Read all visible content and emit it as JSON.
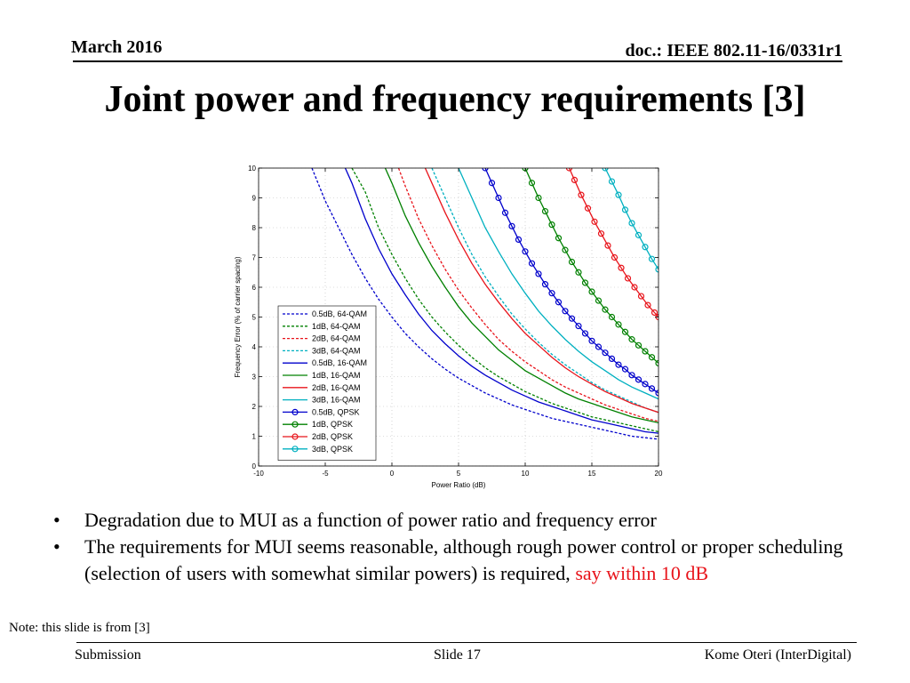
{
  "header": {
    "date": "March 2016",
    "doc": "doc.: IEEE 802.11-16/0331r1"
  },
  "slide_title": "Joint power and frequency requirements [3]",
  "bullets": [
    {
      "text": "Degradation due to MUI as a function of power ratio and frequency error",
      "highlight": ""
    },
    {
      "text": "The requirements for MUI seems reasonable, although rough power control or proper scheduling (selection of users with somewhat similar powers) is required, ",
      "highlight": "say within 10 dB"
    }
  ],
  "bullet_symbol": "•",
  "highlight_color": "#e8141b",
  "note": "Note: this slide is from [3]",
  "footer": {
    "left": "Submission",
    "center": "Slide 17",
    "right": "Kome Oteri (InterDigital)"
  },
  "chart_data": {
    "type": "line",
    "title": "",
    "xlabel": "Power Ratio (dB)",
    "ylabel": "Frequency Error (% of carrier spacing)",
    "xlim": [
      -10,
      20
    ],
    "ylim": [
      0,
      10
    ],
    "xticks": [
      -10,
      -5,
      0,
      5,
      10,
      15,
      20
    ],
    "yticks": [
      0,
      1,
      2,
      3,
      4,
      5,
      6,
      7,
      8,
      9,
      10
    ],
    "grid": true,
    "legend_position": "left-center",
    "series": [
      {
        "name": "0.5dB, 64-QAM",
        "color": "#0000cc",
        "style": "dashed",
        "marker": "none",
        "points": [
          [
            -6,
            10
          ],
          [
            -5,
            8.9
          ],
          [
            -4,
            8.0
          ],
          [
            -3,
            7.1
          ],
          [
            -2,
            6.3
          ],
          [
            -1,
            5.6
          ],
          [
            0,
            5.0
          ],
          [
            1,
            4.45
          ],
          [
            2,
            4.0
          ],
          [
            3,
            3.6
          ],
          [
            4,
            3.25
          ],
          [
            5,
            2.95
          ],
          [
            6,
            2.7
          ],
          [
            7,
            2.45
          ],
          [
            8,
            2.25
          ],
          [
            9,
            2.05
          ],
          [
            10,
            1.9
          ],
          [
            11,
            1.75
          ],
          [
            12,
            1.6
          ],
          [
            13,
            1.5
          ],
          [
            14,
            1.4
          ],
          [
            15,
            1.3
          ],
          [
            16,
            1.2
          ],
          [
            17,
            1.1
          ],
          [
            18,
            1.0
          ],
          [
            19,
            0.95
          ],
          [
            20,
            0.9
          ]
        ]
      },
      {
        "name": "1dB, 64-QAM",
        "color": "#008000",
        "style": "dashed",
        "marker": "none",
        "points": [
          [
            -3,
            10
          ],
          [
            -2,
            9.2
          ],
          [
            -1,
            8.0
          ],
          [
            0,
            7.1
          ],
          [
            1,
            6.3
          ],
          [
            2,
            5.6
          ],
          [
            3,
            5.0
          ],
          [
            4,
            4.5
          ],
          [
            5,
            4.05
          ],
          [
            6,
            3.65
          ],
          [
            7,
            3.3
          ],
          [
            8,
            3.0
          ],
          [
            9,
            2.75
          ],
          [
            10,
            2.5
          ],
          [
            11,
            2.3
          ],
          [
            12,
            2.1
          ],
          [
            13,
            1.95
          ],
          [
            14,
            1.8
          ],
          [
            15,
            1.65
          ],
          [
            16,
            1.55
          ],
          [
            17,
            1.45
          ],
          [
            18,
            1.35
          ],
          [
            19,
            1.25
          ],
          [
            20,
            1.15
          ]
        ]
      },
      {
        "name": "2dB, 64-QAM",
        "color": "#e8141b",
        "style": "dashed",
        "marker": "none",
        "points": [
          [
            0.5,
            10
          ],
          [
            1,
            9.4
          ],
          [
            2,
            8.3
          ],
          [
            3,
            7.4
          ],
          [
            4,
            6.6
          ],
          [
            5,
            5.9
          ],
          [
            6,
            5.3
          ],
          [
            7,
            4.75
          ],
          [
            8,
            4.25
          ],
          [
            9,
            3.85
          ],
          [
            10,
            3.5
          ],
          [
            11,
            3.2
          ],
          [
            12,
            2.9
          ],
          [
            13,
            2.65
          ],
          [
            14,
            2.45
          ],
          [
            15,
            2.25
          ],
          [
            16,
            2.05
          ],
          [
            17,
            1.9
          ],
          [
            18,
            1.75
          ],
          [
            19,
            1.6
          ],
          [
            20,
            1.5
          ]
        ]
      },
      {
        "name": "3dB, 64-QAM",
        "color": "#00b0c0",
        "style": "dashed",
        "marker": "none",
        "points": [
          [
            3,
            10
          ],
          [
            4,
            9.0
          ],
          [
            5,
            8.0
          ],
          [
            6,
            7.1
          ],
          [
            7,
            6.35
          ],
          [
            8,
            5.7
          ],
          [
            9,
            5.1
          ],
          [
            10,
            4.6
          ],
          [
            11,
            4.15
          ],
          [
            12,
            3.75
          ],
          [
            13,
            3.4
          ],
          [
            14,
            3.1
          ],
          [
            15,
            2.8
          ],
          [
            16,
            2.55
          ],
          [
            17,
            2.35
          ],
          [
            18,
            2.15
          ],
          [
            19,
            1.95
          ],
          [
            20,
            1.8
          ]
        ]
      },
      {
        "name": "0.5dB, 16-QAM",
        "color": "#0000cc",
        "style": "solid",
        "marker": "none",
        "points": [
          [
            -3.5,
            10
          ],
          [
            -3,
            9.5
          ],
          [
            -2,
            8.3
          ],
          [
            -1,
            7.3
          ],
          [
            0,
            6.45
          ],
          [
            1,
            5.75
          ],
          [
            2,
            5.1
          ],
          [
            3,
            4.55
          ],
          [
            4,
            4.1
          ],
          [
            5,
            3.7
          ],
          [
            6,
            3.35
          ],
          [
            7,
            3.05
          ],
          [
            8,
            2.8
          ],
          [
            9,
            2.55
          ],
          [
            10,
            2.35
          ],
          [
            11,
            2.15
          ],
          [
            12,
            2.0
          ],
          [
            13,
            1.85
          ],
          [
            14,
            1.7
          ],
          [
            15,
            1.55
          ],
          [
            16,
            1.45
          ],
          [
            17,
            1.35
          ],
          [
            18,
            1.25
          ],
          [
            19,
            1.15
          ],
          [
            20,
            1.1
          ]
        ]
      },
      {
        "name": "1dB, 16-QAM",
        "color": "#008000",
        "style": "solid",
        "marker": "none",
        "points": [
          [
            -0.5,
            10
          ],
          [
            0,
            9.5
          ],
          [
            1,
            8.4
          ],
          [
            2,
            7.5
          ],
          [
            3,
            6.7
          ],
          [
            4,
            6.0
          ],
          [
            5,
            5.35
          ],
          [
            6,
            4.8
          ],
          [
            7,
            4.35
          ],
          [
            8,
            3.9
          ],
          [
            9,
            3.55
          ],
          [
            10,
            3.2
          ],
          [
            11,
            2.95
          ],
          [
            12,
            2.7
          ],
          [
            13,
            2.45
          ],
          [
            14,
            2.25
          ],
          [
            15,
            2.1
          ],
          [
            16,
            1.95
          ],
          [
            17,
            1.8
          ],
          [
            18,
            1.65
          ],
          [
            19,
            1.55
          ],
          [
            20,
            1.45
          ]
        ]
      },
      {
        "name": "2dB, 16-QAM",
        "color": "#e8141b",
        "style": "solid",
        "marker": "none",
        "points": [
          [
            2.5,
            10
          ],
          [
            3,
            9.5
          ],
          [
            4,
            8.5
          ],
          [
            5,
            7.6
          ],
          [
            6,
            6.8
          ],
          [
            7,
            6.1
          ],
          [
            8,
            5.5
          ],
          [
            9,
            4.95
          ],
          [
            10,
            4.45
          ],
          [
            11,
            4.05
          ],
          [
            12,
            3.65
          ],
          [
            13,
            3.3
          ],
          [
            14,
            3.0
          ],
          [
            15,
            2.75
          ],
          [
            16,
            2.5
          ],
          [
            17,
            2.3
          ],
          [
            18,
            2.1
          ],
          [
            19,
            1.95
          ],
          [
            20,
            1.8
          ]
        ]
      },
      {
        "name": "3dB, 16-QAM",
        "color": "#00b0c0",
        "style": "solid",
        "marker": "none",
        "points": [
          [
            5,
            10
          ],
          [
            6,
            9.0
          ],
          [
            7,
            8.0
          ],
          [
            8,
            7.2
          ],
          [
            9,
            6.45
          ],
          [
            10,
            5.8
          ],
          [
            11,
            5.2
          ],
          [
            12,
            4.7
          ],
          [
            13,
            4.25
          ],
          [
            14,
            3.85
          ],
          [
            15,
            3.5
          ],
          [
            16,
            3.2
          ],
          [
            17,
            2.9
          ],
          [
            18,
            2.65
          ],
          [
            19,
            2.45
          ],
          [
            20,
            2.25
          ]
        ]
      },
      {
        "name": "0.5dB, QPSK",
        "color": "#0000cc",
        "style": "solid",
        "marker": "circle",
        "points": [
          [
            7,
            10
          ],
          [
            7.5,
            9.5
          ],
          [
            8,
            9.0
          ],
          [
            8.5,
            8.5
          ],
          [
            9,
            8.05
          ],
          [
            9.5,
            7.6
          ],
          [
            10,
            7.2
          ],
          [
            10.5,
            6.8
          ],
          [
            11,
            6.45
          ],
          [
            11.5,
            6.1
          ],
          [
            12,
            5.8
          ],
          [
            12.5,
            5.5
          ],
          [
            13,
            5.2
          ],
          [
            13.5,
            4.95
          ],
          [
            14,
            4.7
          ],
          [
            14.5,
            4.45
          ],
          [
            15,
            4.2
          ],
          [
            15.5,
            4.0
          ],
          [
            16,
            3.8
          ],
          [
            16.5,
            3.6
          ],
          [
            17,
            3.4
          ],
          [
            17.5,
            3.25
          ],
          [
            18,
            3.05
          ],
          [
            18.5,
            2.9
          ],
          [
            19,
            2.75
          ],
          [
            19.5,
            2.6
          ],
          [
            20,
            2.45
          ]
        ]
      },
      {
        "name": "1dB, QPSK",
        "color": "#008000",
        "style": "solid",
        "marker": "circle",
        "points": [
          [
            10,
            10
          ],
          [
            10.5,
            9.5
          ],
          [
            11,
            9.0
          ],
          [
            11.5,
            8.55
          ],
          [
            12,
            8.1
          ],
          [
            12.5,
            7.65
          ],
          [
            13,
            7.25
          ],
          [
            13.5,
            6.85
          ],
          [
            14,
            6.5
          ],
          [
            14.5,
            6.15
          ],
          [
            15,
            5.85
          ],
          [
            15.5,
            5.55
          ],
          [
            16,
            5.25
          ],
          [
            16.5,
            5.0
          ],
          [
            17,
            4.75
          ],
          [
            17.5,
            4.5
          ],
          [
            18,
            4.25
          ],
          [
            18.5,
            4.05
          ],
          [
            19,
            3.85
          ],
          [
            19.5,
            3.65
          ],
          [
            20,
            3.45
          ]
        ]
      },
      {
        "name": "2dB, QPSK",
        "color": "#e8141b",
        "style": "solid",
        "marker": "circle",
        "points": [
          [
            13.3,
            10
          ],
          [
            13.7,
            9.6
          ],
          [
            14.2,
            9.1
          ],
          [
            14.7,
            8.65
          ],
          [
            15.2,
            8.2
          ],
          [
            15.7,
            7.8
          ],
          [
            16.2,
            7.4
          ],
          [
            16.7,
            7.0
          ],
          [
            17.2,
            6.65
          ],
          [
            17.7,
            6.3
          ],
          [
            18.2,
            6.0
          ],
          [
            18.7,
            5.7
          ],
          [
            19.2,
            5.4
          ],
          [
            19.7,
            5.15
          ],
          [
            20,
            5.0
          ]
        ]
      },
      {
        "name": "3dB, QPSK",
        "color": "#00b0c0",
        "style": "solid",
        "marker": "circle",
        "points": [
          [
            16,
            10
          ],
          [
            16.5,
            9.55
          ],
          [
            17,
            9.1
          ],
          [
            17.5,
            8.6
          ],
          [
            18,
            8.15
          ],
          [
            18.5,
            7.75
          ],
          [
            19,
            7.35
          ],
          [
            19.5,
            6.95
          ],
          [
            20,
            6.6
          ]
        ]
      }
    ]
  }
}
